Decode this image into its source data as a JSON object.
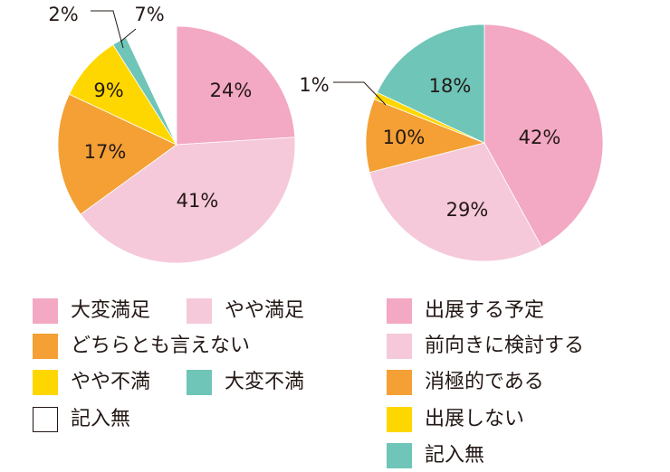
{
  "chart_data": [
    {
      "type": "pie",
      "slices": [
        {
          "name": "大変満足",
          "value": 24,
          "label": "24%",
          "color": "#F3A8C3"
        },
        {
          "name": "やや満足",
          "value": 41,
          "label": "41%",
          "color": "#F5C9DA"
        },
        {
          "name": "どちらとも言えない",
          "value": 17,
          "label": "17%",
          "color": "#F4A035"
        },
        {
          "name": "やや不満",
          "value": 9,
          "label": "9%",
          "color": "#FFD700"
        },
        {
          "name": "大変不満",
          "value": 2,
          "label": "2%",
          "color": "#6EC5B8"
        },
        {
          "name": "記入無",
          "value": 7,
          "label": "7%",
          "color": "#FFFFFF"
        }
      ]
    },
    {
      "type": "pie",
      "slices": [
        {
          "name": "出展する予定",
          "value": 42,
          "label": "42%",
          "color": "#F3A8C3"
        },
        {
          "name": "前向きに検討する",
          "value": 29,
          "label": "29%",
          "color": "#F5C9DA"
        },
        {
          "name": "消極的である",
          "value": 10,
          "label": "10%",
          "color": "#F4A035"
        },
        {
          "name": "出展しない",
          "value": 1,
          "label": "1%",
          "color": "#FFD700"
        },
        {
          "name": "記入無",
          "value": 18,
          "label": "18%",
          "color": "#6EC5B8"
        }
      ]
    }
  ],
  "legend_left": [
    {
      "label": "大変満足",
      "color": "#F3A8C3"
    },
    {
      "label": "やや満足",
      "color": "#F5C9DA"
    },
    {
      "label": "どちらとも言えない",
      "color": "#F4A035"
    },
    {
      "label": "やや不満",
      "color": "#FFD700"
    },
    {
      "label": "大変不満",
      "color": "#6EC5B8"
    },
    {
      "label": "記入無",
      "color": "#FFFFFF"
    }
  ],
  "legend_right": [
    {
      "label": "出展する予定",
      "color": "#F3A8C3"
    },
    {
      "label": "前向きに検討する",
      "color": "#F5C9DA"
    },
    {
      "label": "消極的である",
      "color": "#F4A035"
    },
    {
      "label": "出展しない",
      "color": "#FFD700"
    },
    {
      "label": "記入無",
      "color": "#6EC5B8"
    }
  ]
}
